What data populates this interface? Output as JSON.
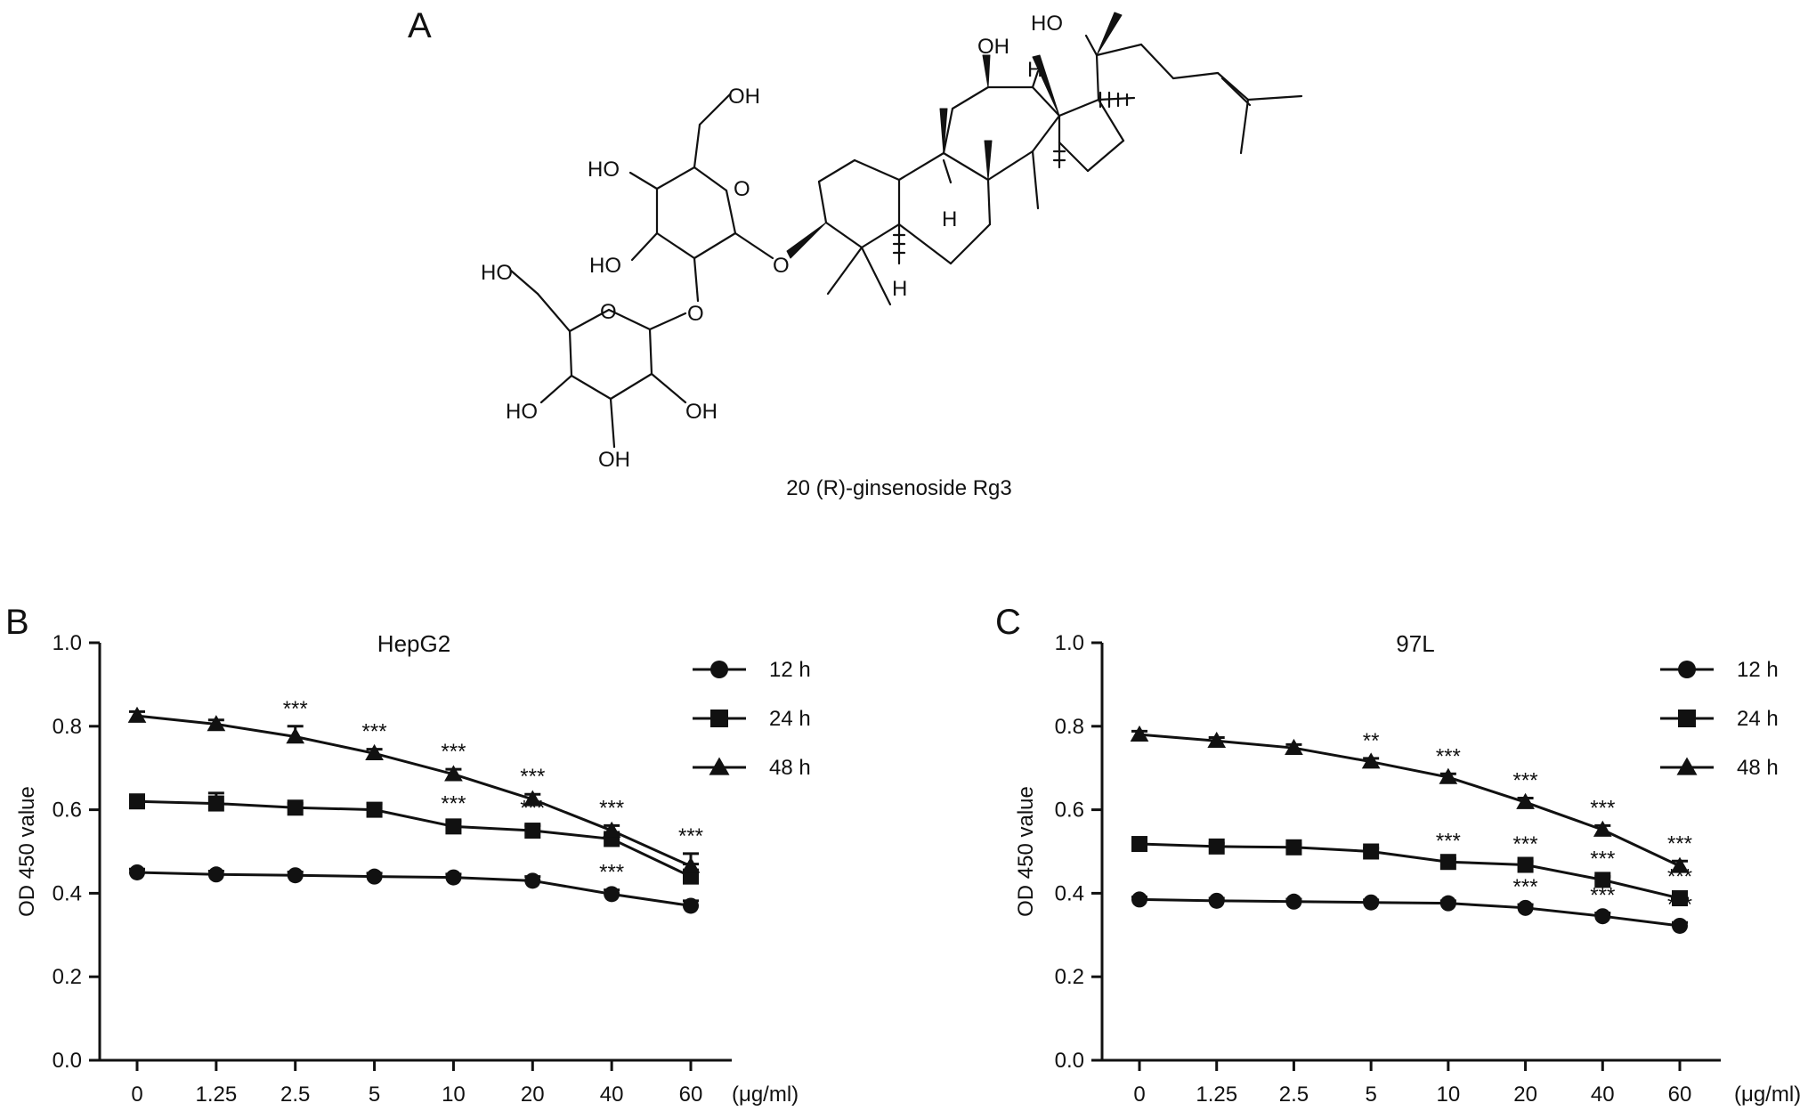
{
  "panels": {
    "a": {
      "letter": "A",
      "caption": "20 (R)-ginsenoside Rg3"
    },
    "b": {
      "letter": "B"
    },
    "c": {
      "letter": "C"
    }
  },
  "chart_data": [
    {
      "type": "line",
      "panel": "B",
      "title": "HepG2",
      "xlabel": "",
      "ylabel": "OD 450 value",
      "x_unit": "(μg/ml)",
      "categories": [
        "0",
        "1.25",
        "2.5",
        "5",
        "10",
        "20",
        "40",
        "60"
      ],
      "ylim": [
        0,
        1.0
      ],
      "yticks": [
        "0.0",
        "0.2",
        "0.4",
        "0.6",
        "0.8",
        "1.0"
      ],
      "legend_position": "top-right",
      "grid": false,
      "series": [
        {
          "name": "12 h",
          "marker": "circle",
          "values": [
            0.45,
            0.445,
            0.443,
            0.44,
            0.438,
            0.43,
            0.398,
            0.37
          ],
          "errors": [
            0.008,
            0.008,
            0.008,
            0.008,
            0.008,
            0.01,
            0.01,
            0.012
          ],
          "significance": [
            "",
            "",
            "",
            "",
            "",
            "",
            "***",
            ""
          ]
        },
        {
          "name": "24 h",
          "marker": "square",
          "values": [
            0.62,
            0.615,
            0.605,
            0.6,
            0.56,
            0.55,
            0.53,
            0.44
          ],
          "errors": [
            0.01,
            0.025,
            0.01,
            0.015,
            0.012,
            0.012,
            0.012,
            0.03
          ],
          "significance": [
            "",
            "",
            "",
            "",
            "***",
            "***",
            "",
            ""
          ]
        },
        {
          "name": "48 h",
          "marker": "triangle",
          "values": [
            0.825,
            0.805,
            0.775,
            0.735,
            0.685,
            0.625,
            0.55,
            0.465
          ],
          "errors": [
            0.01,
            0.01,
            0.025,
            0.01,
            0.012,
            0.012,
            0.012,
            0.03
          ],
          "significance": [
            "",
            "",
            "***",
            "***",
            "***",
            "***",
            "***",
            "***"
          ]
        }
      ]
    },
    {
      "type": "line",
      "panel": "C",
      "title": "97L",
      "xlabel": "",
      "ylabel": "OD 450 value",
      "x_unit": "(μg/ml)",
      "categories": [
        "0",
        "1.25",
        "2.5",
        "5",
        "10",
        "20",
        "40",
        "60"
      ],
      "ylim": [
        0,
        1.0
      ],
      "yticks": [
        "0.0",
        "0.2",
        "0.4",
        "0.6",
        "0.8",
        "1.0"
      ],
      "legend_position": "top-right",
      "grid": false,
      "series": [
        {
          "name": "12 h",
          "marker": "circle",
          "values": [
            0.385,
            0.382,
            0.38,
            0.378,
            0.376,
            0.365,
            0.345,
            0.322
          ],
          "errors": [
            0.006,
            0.006,
            0.006,
            0.006,
            0.006,
            0.008,
            0.008,
            0.008
          ],
          "significance": [
            "",
            "",
            "",
            "",
            "",
            "***",
            "***",
            "***"
          ]
        },
        {
          "name": "24 h",
          "marker": "square",
          "values": [
            0.518,
            0.512,
            0.51,
            0.5,
            0.475,
            0.468,
            0.432,
            0.388
          ],
          "errors": [
            0.008,
            0.008,
            0.008,
            0.008,
            0.008,
            0.008,
            0.008,
            0.01
          ],
          "significance": [
            "",
            "",
            "",
            "",
            "***",
            "***",
            "***",
            "***"
          ]
        },
        {
          "name": "48 h",
          "marker": "triangle",
          "values": [
            0.78,
            0.765,
            0.748,
            0.715,
            0.678,
            0.618,
            0.552,
            0.465
          ],
          "errors": [
            0.008,
            0.008,
            0.008,
            0.008,
            0.008,
            0.01,
            0.01,
            0.012
          ],
          "significance": [
            "",
            "",
            "",
            "**",
            "***",
            "***",
            "***",
            "***"
          ]
        }
      ]
    }
  ],
  "molecule": {
    "atom_labels": [
      "HO",
      "OH",
      "H",
      "OH",
      "HO",
      "O",
      "HO",
      "O",
      "HO",
      "O",
      "O",
      "H",
      "H",
      "HO",
      "OH",
      "OH"
    ]
  }
}
